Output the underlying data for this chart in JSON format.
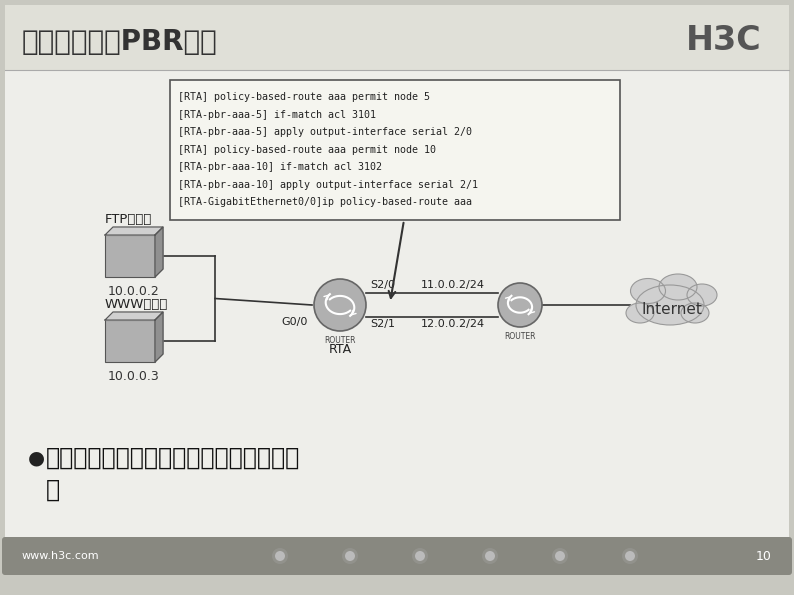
{
  "title": "基于源地址的PBR应用",
  "h3c_logo": "H3C",
  "bg_color": "#c8c8c0",
  "slide_bg": "#eeeeea",
  "title_bg": "#e0e0d8",
  "code_box_text": "[RTA] policy-based-route aaa permit node 5\n[RTA-pbr-aaa-5] if-match acl 3101\n[RTA-pbr-aaa-5] apply output-interface serial 2/0\n[RTA] policy-based-route aaa permit node 10\n[RTA-pbr-aaa-10] if-match acl 3102\n[RTA-pbr-aaa-10] apply output-interface serial 2/1\n[RTA-GigabitEthernet0/0]ip policy-based-route aaa",
  "ftp_label": "FTP服务器",
  "ftp_ip": "10.0.0.2",
  "www_label": "WWW服务器",
  "www_ip": "10.0.0.3",
  "rta_label": "RTA",
  "router_label": "ROUTER",
  "g0_label": "G0/0",
  "s20_label": "S2/0",
  "s21_label": "S2/1",
  "ip_upper": "11.0.0.2/24",
  "ip_lower": "12.0.0.2/24",
  "internet_label": "Internet",
  "bullet_text_1": "根据源地址的不同，在出接口实现负载分",
  "bullet_text_2": "担",
  "footer_text": "www.h3c.com",
  "page_num": "10"
}
